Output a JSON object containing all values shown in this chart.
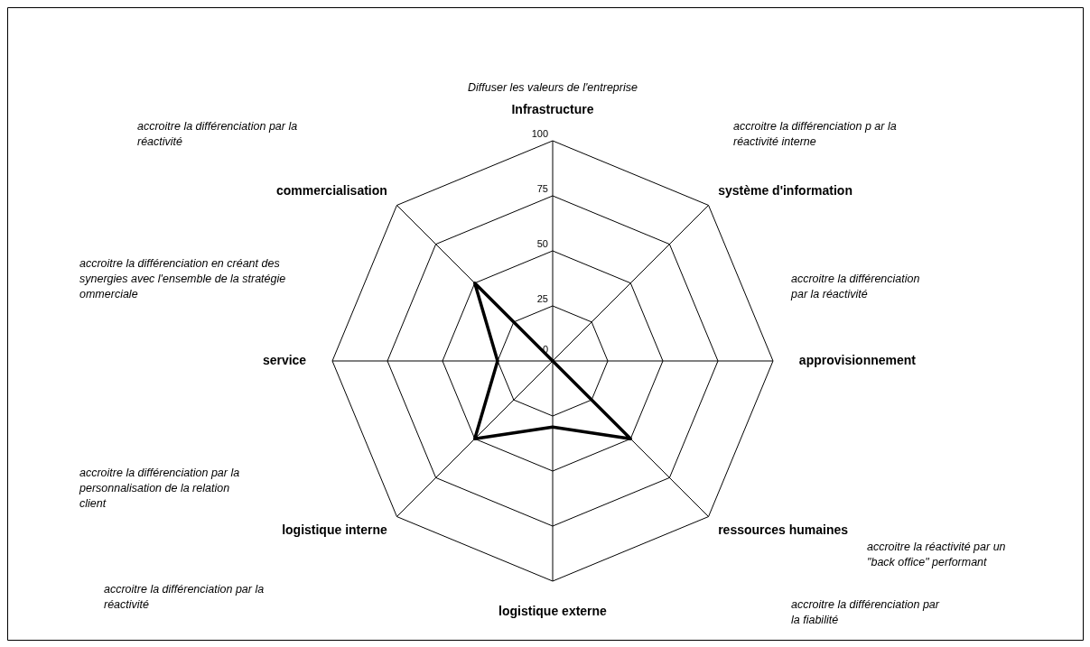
{
  "chart_data": {
    "type": "radar",
    "categories": [
      "Infrastructure",
      "système d'information",
      "approvisionnement",
      "ressources humaines",
      "logistique externe",
      "logistique interne",
      "service",
      "commercialisation"
    ],
    "series": [
      {
        "color": "#000000",
        "values": [
          0,
          0,
          0,
          50,
          30,
          50,
          25,
          50
        ]
      }
    ],
    "ylim": [
      0,
      100
    ],
    "yticks": [
      0,
      25,
      50,
      75,
      100
    ],
    "grid": true,
    "marker": "none",
    "line_style": "solid",
    "annotations": [
      "Diffuser les valeurs de l'entreprise",
      "accroitre la différenciation p ar la\n réactivité interne",
      "accroitre la différenciation\npar la réactivité",
      "accroitre la réactivité par un\n\"back office\" performant",
      "accroitre la différenciation par\nla fiabilité",
      "accroitre la différenciation par la\nréactivité",
      "accroitre la différenciation par la\npersonnalisation de la relation\nclient",
      "accroitre la différenciation en créant  des\nsynergies avec l'ensemble de la stratégie\nommerciale",
      "accroitre la différenciation par la\nréactivité"
    ]
  }
}
